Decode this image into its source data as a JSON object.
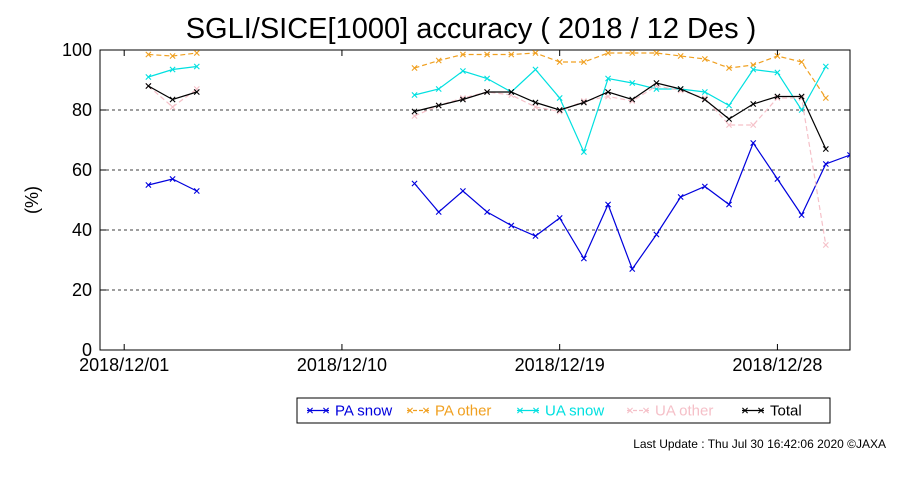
{
  "chart_data": {
    "type": "line",
    "title": "SGLI/SICE[1000] accuracy ( 2018 / 12 Des )",
    "xlabel": "",
    "ylabel": "(%)",
    "x_range": [
      "2018-11-30",
      "2018-12-31"
    ],
    "ylim": [
      0,
      100
    ],
    "y_ticks": [
      0,
      20,
      40,
      60,
      80,
      100
    ],
    "x_ticks": [
      {
        "date": "2018-12-01",
        "label": "2018/12/01"
      },
      {
        "date": "2018-12-10",
        "label": "2018/12/10"
      },
      {
        "date": "2018-12-19",
        "label": "2018/12/19"
      },
      {
        "date": "2018-12-28",
        "label": "2018/12/28"
      }
    ],
    "grid": "horizontal dashed",
    "legend_position": "bottom",
    "x": [
      "2018-12-02",
      "2018-12-03",
      "2018-12-04",
      "2018-12-13",
      "2018-12-14",
      "2018-12-15",
      "2018-12-16",
      "2018-12-17",
      "2018-12-18",
      "2018-12-19",
      "2018-12-20",
      "2018-12-21",
      "2018-12-22",
      "2018-12-23",
      "2018-12-24",
      "2018-12-25",
      "2018-12-26",
      "2018-12-27",
      "2018-12-28",
      "2018-12-29",
      "2018-12-30",
      "2018-12-31"
    ],
    "series": [
      {
        "name": "PA snow",
        "color": "#0000dd",
        "style": "solid",
        "values": [
          55,
          57,
          53,
          55.5,
          46,
          53,
          46,
          41.5,
          38,
          44,
          30.5,
          48.5,
          27,
          38.5,
          51,
          54.5,
          48.5,
          69,
          57,
          45,
          62,
          65
        ]
      },
      {
        "name": "PA other",
        "color": "#f0a020",
        "style": "dashed",
        "values": [
          98.5,
          98,
          99,
          94,
          96.5,
          98.5,
          98.5,
          98.5,
          99,
          96,
          96,
          99,
          99,
          99,
          98,
          97,
          94,
          95,
          98,
          96,
          84,
          null
        ]
      },
      {
        "name": "UA snow",
        "color": "#00e0e0",
        "style": "solid",
        "values": [
          91,
          93.5,
          94.5,
          85,
          87,
          93,
          90.5,
          86,
          93.5,
          84,
          66,
          90.5,
          89,
          87,
          87,
          86,
          81.5,
          93.5,
          92.5,
          80,
          94.5,
          null
        ]
      },
      {
        "name": "UA other",
        "color": "#f5c0c8",
        "style": "dashed",
        "values": [
          88,
          81,
          87,
          78,
          81.5,
          84,
          86,
          85,
          81,
          79.5,
          83,
          84.5,
          83,
          88,
          86.5,
          84,
          75,
          75,
          84,
          84,
          35,
          null
        ]
      },
      {
        "name": "Total",
        "color": "#000000",
        "style": "solid",
        "values": [
          88,
          83.5,
          86,
          79.5,
          81.5,
          83.5,
          86,
          86,
          82.5,
          80,
          82.5,
          86,
          83.5,
          89,
          87,
          83.5,
          77,
          82,
          84.5,
          84.5,
          67,
          null
        ]
      }
    ]
  },
  "footer": {
    "text": "Last Update : Thu Jul 30 16:42:06 2020  ©JAXA"
  }
}
